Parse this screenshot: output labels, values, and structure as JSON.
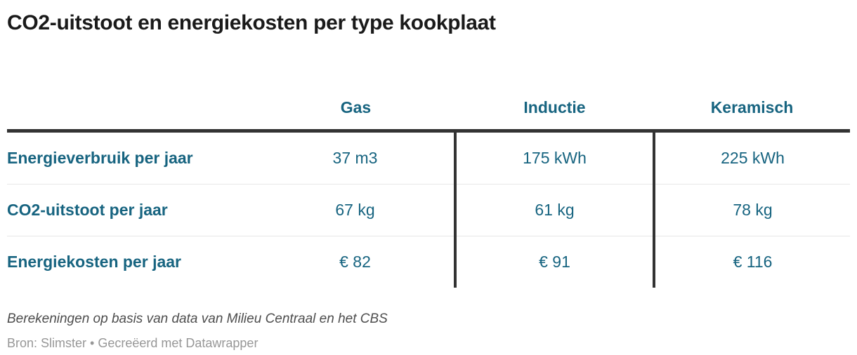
{
  "header": {
    "title": "CO2-uitstoot en energiekosten per type kookplaat"
  },
  "chart_data": {
    "type": "table",
    "title": "CO2-uitstoot en energiekosten per type kookplaat",
    "columns": [
      "",
      "Gas",
      "Inductie",
      "Keramisch"
    ],
    "rows": [
      {
        "label": "Energieverbruik per jaar",
        "values": [
          "37 m3",
          "175 kWh",
          "225 kWh"
        ]
      },
      {
        "label": "CO2-uitstoot per jaar",
        "values": [
          "67 kg",
          "61 kg",
          "78 kg"
        ]
      },
      {
        "label": "Energiekosten per jaar",
        "values": [
          "€ 82",
          "€ 91",
          "€ 116"
        ]
      }
    ],
    "notes": "Berekeningen op basis van data van Milieu Centraal en het CBS",
    "source": "Bron: Slimster • Gecreëerd met Datawrapper",
    "layout": {
      "label_column_align": "left",
      "value_columns_align": "center",
      "grid": "horizontal-light, header-rule-dark, vertical-dark-between-value-columns"
    }
  },
  "colors": {
    "accent_teal": "#176480",
    "title_text": "#1a1a1a",
    "rule_dark": "#333333",
    "rule_light": "#e7e7e7",
    "notes_text": "#4d4d4d",
    "source_text": "#979797",
    "background": "#ffffff"
  }
}
